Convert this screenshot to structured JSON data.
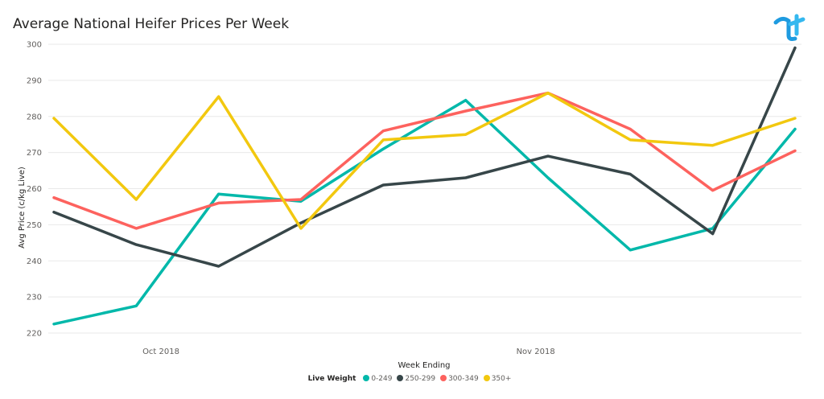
{
  "chart_data": {
    "type": "line",
    "title": "Average National Heifer Prices Per Week",
    "xlabel": "Week Ending",
    "ylabel": "Avg Price (c/kg Live)",
    "ylim": [
      220,
      300
    ],
    "yticks": [
      220,
      230,
      240,
      250,
      260,
      270,
      280,
      290,
      300
    ],
    "x_tick_labels": [
      {
        "label": "Oct 2018",
        "at": 1.3
      },
      {
        "label": "Nov 2018",
        "at": 5.85
      }
    ],
    "grid": true,
    "legend_title": "Live Weight",
    "legend_position": "bottom-center",
    "x_count": 10,
    "series": [
      {
        "name": "0-249",
        "color": "#01b8aa",
        "values": [
          222.5,
          227.5,
          258.5,
          256.5,
          271,
          284.5,
          263,
          243,
          249,
          276.5
        ]
      },
      {
        "name": "250-299",
        "color": "#374649",
        "values": [
          253.5,
          244.5,
          238.5,
          250.5,
          261,
          263,
          269,
          264,
          247.5,
          299
        ]
      },
      {
        "name": "300-349",
        "color": "#fd625e",
        "values": [
          257.5,
          249,
          256,
          257,
          276,
          281.5,
          286.5,
          276.5,
          259.5,
          270.5
        ]
      },
      {
        "name": "350+",
        "color": "#f2c80f",
        "values": [
          279.5,
          257,
          285.5,
          249,
          273.5,
          275,
          286.5,
          273.5,
          272,
          279.5
        ]
      }
    ]
  }
}
